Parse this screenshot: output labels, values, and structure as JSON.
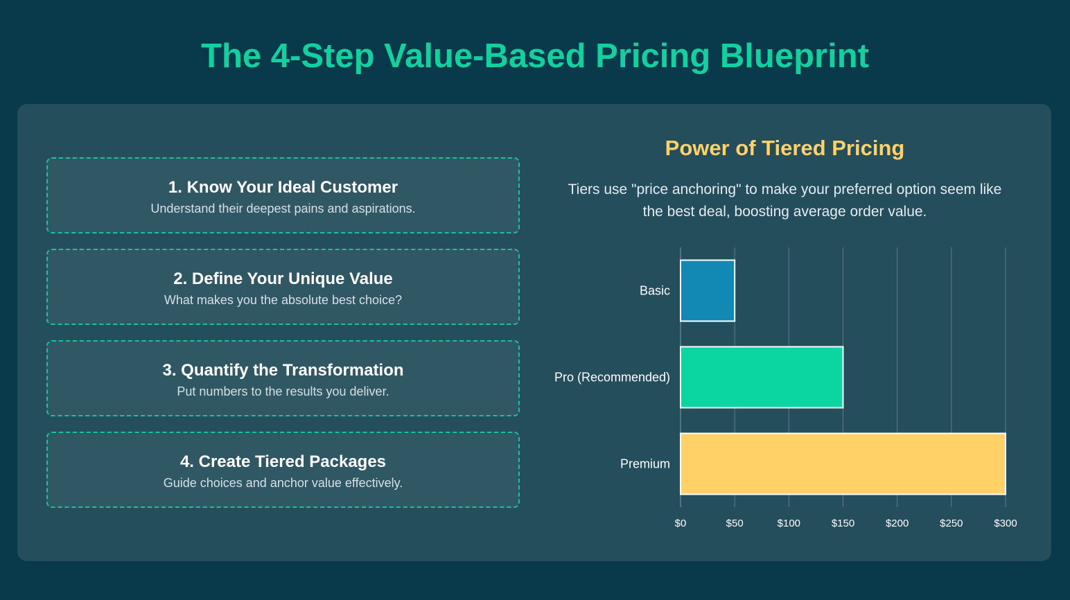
{
  "title": "The 4-Step Value-Based Pricing Blueprint",
  "steps": [
    {
      "title": "1. Know Your Ideal Customer",
      "desc": "Understand their deepest pains and aspirations."
    },
    {
      "title": "2. Define Your Unique Value",
      "desc": "What makes you the absolute best choice?"
    },
    {
      "title": "3. Quantify the Transformation",
      "desc": "Put numbers to the results you deliver."
    },
    {
      "title": "4. Create Tiered Packages",
      "desc": "Guide choices and anchor value effectively."
    }
  ],
  "chart_section": {
    "title": "Power of Tiered Pricing",
    "subtitle": "Tiers use \"price anchoring\" to make your preferred option seem like the best deal, boosting average order value."
  },
  "chart_data": {
    "type": "bar",
    "orientation": "horizontal",
    "categories": [
      "Basic",
      "Pro (Recommended)",
      "Premium"
    ],
    "values": [
      50,
      150,
      300
    ],
    "colors": [
      "#1289b4",
      "#0bd6a2",
      "#ffd166"
    ],
    "bar_border_color": "#ffffff",
    "xlim": [
      0,
      300
    ],
    "x_ticks": [
      0,
      50,
      100,
      150,
      200,
      250,
      300
    ],
    "x_tick_labels": [
      "$0",
      "$50",
      "$100",
      "$150",
      "$200",
      "$250",
      "$300"
    ],
    "grid": "vertical",
    "legend": "none"
  }
}
